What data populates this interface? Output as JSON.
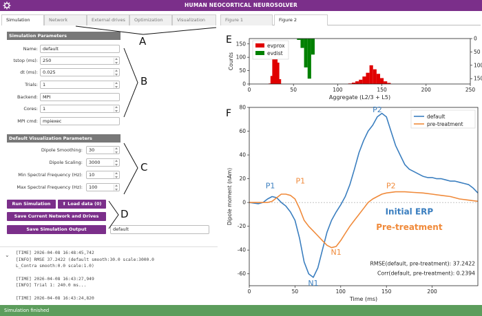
{
  "app": {
    "title": "HUMAN NEOCORTICAL NEUROSOLVER",
    "logo_icon": "gear-icon"
  },
  "left_tabs": [
    {
      "label": "Simulation",
      "active": true
    },
    {
      "label": "Network",
      "active": false
    },
    {
      "label": "External drives",
      "active": false
    },
    {
      "label": "Optimization",
      "active": false
    },
    {
      "label": "Visualization",
      "active": false
    }
  ],
  "sim_params": {
    "header": "Simulation Parameters",
    "fields": [
      {
        "label": "Name:",
        "value": "default",
        "spin": false
      },
      {
        "label": "tstop (ms):",
        "value": "250",
        "spin": true
      },
      {
        "label": "dt (ms):",
        "value": "0.025",
        "spin": true
      },
      {
        "label": "Trials:",
        "value": "1",
        "spin": true
      },
      {
        "label": "Backend:",
        "value": "MPI",
        "spin": false
      },
      {
        "label": "Cores:",
        "value": "1",
        "spin": true
      },
      {
        "label": "MPI cmd:",
        "value": "mpiexec",
        "spin": false
      }
    ]
  },
  "viz_params": {
    "header": "Default Visualization Parameters",
    "fields": [
      {
        "label": "Dipole Smoothing:",
        "value": "30",
        "spin": true
      },
      {
        "label": "Dipole Scaling:",
        "value": "3000",
        "spin": true
      },
      {
        "label": "Min Spectral Frequency (Hz):",
        "value": "10",
        "spin": true
      },
      {
        "label": "Max Spectral Frequency (Hz):",
        "value": "100",
        "spin": true
      }
    ]
  },
  "buttons": {
    "run": "Run Simulation",
    "load": "Load data (0)",
    "save_network": "Save Current Network and Drives",
    "save_output": "Save Simulation Output",
    "output_select_value": "default"
  },
  "annotation_letters": {
    "A": "A",
    "B": "B",
    "C": "C",
    "D": "D",
    "E": "E",
    "F": "F"
  },
  "log": {
    "toggle_icon": "chevron-down-icon",
    "lines": [
      "[TIME] 2026-04-08 16:48:45,742",
      "[INFO] RMSE 37.2422 (default smooth:30.0 scale:3000.0",
      "L_Contra smooth:0.0 scale:1.0)",
      "",
      "[TIME] 2026-04-08 16:43:27,949",
      "[INFO] Trial 1: 240.0 ms...",
      "",
      "[TIME] 2026-04-08 16:43:24,820"
    ]
  },
  "figure_tabs": [
    {
      "label": "Figure 1",
      "active": false
    },
    {
      "label": "Figure 2",
      "active": true
    }
  ],
  "status": "Simulation finished",
  "colors": {
    "purple": "#7b2f8a",
    "status_green": "#5c9d5c",
    "evprox": "#e00000",
    "evdist": "#008000",
    "default_line": "#3a7ebf",
    "pretreat_line": "#f08a3a"
  },
  "chart_data": [
    {
      "type": "bar",
      "xlabel": "Aggregate (L2/3 + L5)",
      "ylabel": "Counts",
      "xlim": [
        0,
        250
      ],
      "ylim": [
        0,
        170
      ],
      "xticks": [
        "0",
        "50",
        "100",
        "150",
        "200",
        "250"
      ],
      "yticks": [
        "0",
        "50",
        "100",
        "150"
      ],
      "right_yticks": [
        "0",
        "50",
        "100",
        "150"
      ],
      "legend_position": "top-left",
      "series": [
        {
          "name": "evprox",
          "axis": "left",
          "bins": [
            {
              "x": 22,
              "v": 2
            },
            {
              "x": 24,
              "v": 30
            },
            {
              "x": 26,
              "v": 140
            },
            {
              "x": 28,
              "v": 158
            },
            {
              "x": 30,
              "v": 80
            },
            {
              "x": 32,
              "v": 18
            },
            {
              "x": 112,
              "v": 2
            },
            {
              "x": 116,
              "v": 5
            },
            {
              "x": 120,
              "v": 10
            },
            {
              "x": 124,
              "v": 16
            },
            {
              "x": 128,
              "v": 28
            },
            {
              "x": 132,
              "v": 42
            },
            {
              "x": 136,
              "v": 70
            },
            {
              "x": 140,
              "v": 55
            },
            {
              "x": 144,
              "v": 38
            },
            {
              "x": 148,
              "v": 22
            },
            {
              "x": 152,
              "v": 10
            },
            {
              "x": 156,
              "v": 4
            }
          ]
        },
        {
          "name": "evdist",
          "axis": "right-inverted",
          "bins": [
            {
              "x": 54,
              "v": 5
            },
            {
              "x": 58,
              "v": 35
            },
            {
              "x": 62,
              "v": 108
            },
            {
              "x": 66,
              "v": 150
            },
            {
              "x": 70,
              "v": 60
            }
          ]
        }
      ]
    },
    {
      "type": "line",
      "xlabel": "Time (ms)",
      "ylabel": "Dipole moment (nAm)",
      "xlim": [
        0,
        250
      ],
      "ylim": [
        -70,
        80
      ],
      "xticks": [
        "0",
        "50",
        "100",
        "150",
        "200"
      ],
      "yticks": [
        "80",
        "60",
        "40",
        "20",
        "0",
        "-20",
        "-40",
        "-60"
      ],
      "legend_position": "top-right",
      "series": [
        {
          "name": "default",
          "x": [
            0,
            10,
            15,
            20,
            25,
            30,
            35,
            40,
            45,
            50,
            55,
            60,
            65,
            70,
            75,
            80,
            85,
            90,
            95,
            100,
            105,
            110,
            115,
            120,
            125,
            130,
            135,
            140,
            145,
            150,
            155,
            160,
            165,
            170,
            175,
            180,
            185,
            190,
            195,
            200,
            205,
            210,
            215,
            220,
            225,
            230,
            235,
            240,
            245,
            250
          ],
          "y": [
            0,
            -1,
            0,
            3,
            5,
            4,
            0,
            -3,
            -8,
            -15,
            -30,
            -50,
            -60,
            -63,
            -55,
            -40,
            -25,
            -15,
            -8,
            -2,
            5,
            15,
            28,
            42,
            52,
            60,
            65,
            72,
            75,
            72,
            60,
            48,
            40,
            32,
            28,
            26,
            24,
            22,
            21,
            21,
            20,
            20,
            19,
            18,
            18,
            17,
            16,
            15,
            12,
            8
          ]
        },
        {
          "name": "pre-treatment",
          "x": [
            0,
            10,
            20,
            25,
            30,
            35,
            40,
            45,
            50,
            55,
            60,
            65,
            70,
            75,
            80,
            85,
            90,
            95,
            100,
            105,
            110,
            115,
            120,
            125,
            130,
            135,
            140,
            145,
            150,
            160,
            170,
            180,
            190,
            200,
            210,
            220,
            230,
            240,
            250
          ],
          "y": [
            0,
            0,
            0,
            1,
            4,
            7,
            7,
            6,
            3,
            -5,
            -15,
            -20,
            -24,
            -28,
            -32,
            -36,
            -38,
            -37,
            -32,
            -26,
            -20,
            -15,
            -10,
            -5,
            0,
            3,
            5,
            7,
            8,
            9,
            9,
            8.5,
            8,
            7,
            6,
            5,
            3,
            2,
            1
          ]
        }
      ],
      "annotations": {
        "default_labels": [
          "P1",
          "N1",
          "P2"
        ],
        "pretreat_labels": [
          "P1",
          "N1",
          "P2"
        ],
        "initial_erp": "Initial ERP",
        "pre_treatment": "Pre-treatment",
        "rmse_text": "RMSE(default, pre-treatment): 37.2422",
        "corr_text": "Corr(default, pre-treatment): 0.2394"
      }
    }
  ]
}
